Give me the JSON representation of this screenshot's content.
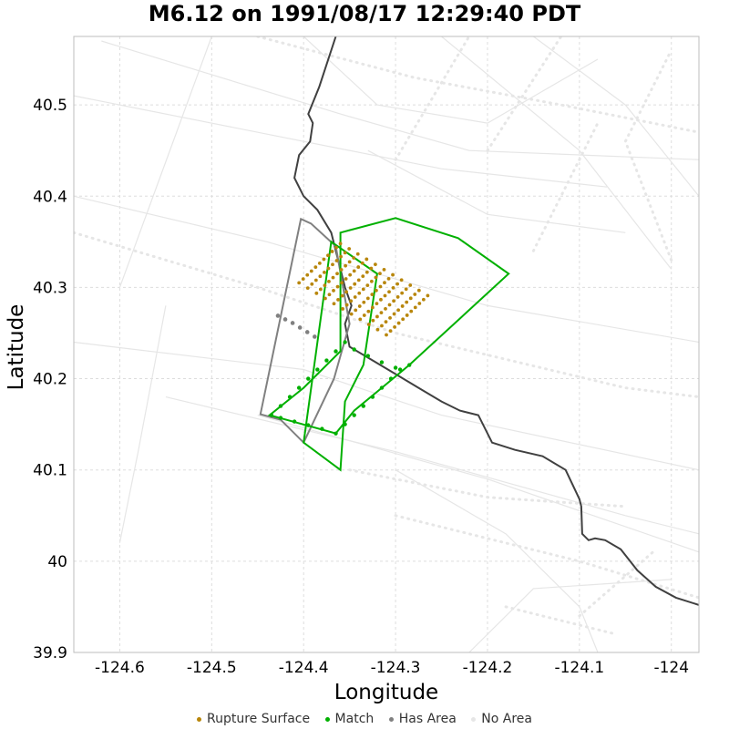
{
  "title": "M6.12 on 1991/08/17 12:29:40 PDT",
  "xlabel": "Longitude",
  "ylabel": "Latitude",
  "x_ticks": [
    "-124.6",
    "-124.5",
    "-124.4",
    "-124.3",
    "-124.2",
    "-124.1",
    "-124"
  ],
  "y_ticks": [
    "40.5",
    "40.4",
    "40.3",
    "40.2",
    "40.1",
    "40",
    "39.9"
  ],
  "legend": [
    {
      "label": "Rupture Surface",
      "color": "#b8860b"
    },
    {
      "label": "Match",
      "color": "#00b000"
    },
    {
      "label": "Has Area",
      "color": "#808080"
    },
    {
      "label": "No Area",
      "color": "#e6e6e6"
    }
  ],
  "chart_data": {
    "type": "scatter",
    "title": "M6.12 on 1991/08/17 12:29:40 PDT",
    "xlabel": "Longitude",
    "ylabel": "Latitude",
    "xlim": [
      -124.65,
      -123.97
    ],
    "ylim": [
      39.9,
      40.575
    ],
    "grid": true,
    "legend_position": "bottom",
    "colors": {
      "rupture": "#b8860b",
      "match": "#00b000",
      "has_area": "#808080",
      "no_area": "#e6e6e6",
      "coast": "#404040"
    },
    "coastline": [
      [
        -124.365,
        40.575
      ],
      [
        -124.383,
        40.52
      ],
      [
        -124.395,
        40.49
      ],
      [
        -124.39,
        40.48
      ],
      [
        -124.393,
        40.46
      ],
      [
        -124.405,
        40.445
      ],
      [
        -124.41,
        40.42
      ],
      [
        -124.4,
        40.4
      ],
      [
        -124.385,
        40.385
      ],
      [
        -124.37,
        40.36
      ],
      [
        -124.365,
        40.34
      ],
      [
        -124.36,
        40.32
      ],
      [
        -124.355,
        40.3
      ],
      [
        -124.348,
        40.28
      ],
      [
        -124.355,
        40.26
      ],
      [
        -124.35,
        40.235
      ],
      [
        -124.325,
        40.22
      ],
      [
        -124.3,
        40.205
      ],
      [
        -124.275,
        40.19
      ],
      [
        -124.25,
        40.175
      ],
      [
        -124.23,
        40.165
      ],
      [
        -124.21,
        40.16
      ],
      [
        -124.195,
        40.13
      ],
      [
        -124.17,
        40.122
      ],
      [
        -124.14,
        40.115
      ],
      [
        -124.115,
        40.1
      ],
      [
        -124.1,
        40.068
      ],
      [
        -124.098,
        40.06
      ],
      [
        -124.097,
        40.03
      ],
      [
        -124.09,
        40.023
      ],
      [
        -124.083,
        40.025
      ],
      [
        -124.072,
        40.023
      ],
      [
        -124.055,
        40.013
      ],
      [
        -124.037,
        39.99
      ],
      [
        -124.017,
        39.972
      ],
      [
        -123.995,
        39.96
      ],
      [
        -123.97,
        39.952
      ]
    ],
    "series": [
      {
        "name": "Has Area",
        "polygon": [
          [
            -124.403,
            40.375
          ],
          [
            -124.392,
            40.37
          ],
          [
            -124.365,
            40.345
          ],
          [
            -124.35,
            40.26
          ],
          [
            -124.36,
            40.225
          ],
          [
            -124.367,
            40.2
          ],
          [
            -124.4,
            40.13
          ],
          [
            -124.425,
            40.155
          ],
          [
            -124.447,
            40.161
          ],
          [
            -124.403,
            40.375
          ]
        ],
        "points": [
          [
            -124.428,
            40.269
          ],
          [
            -124.42,
            40.265
          ],
          [
            -124.412,
            40.261
          ],
          [
            -124.404,
            40.256
          ],
          [
            -124.396,
            40.251
          ],
          [
            -124.388,
            40.246
          ]
        ]
      },
      {
        "name": "Match",
        "polygons": [
          [
            [
              -124.36,
              40.36
            ],
            [
              -124.3,
              40.376
            ],
            [
              -124.232,
              40.354
            ],
            [
              -124.177,
              40.315
            ],
            [
              -124.285,
              40.215
            ],
            [
              -124.315,
              40.19
            ],
            [
              -124.345,
              40.165
            ],
            [
              -124.365,
              40.14
            ],
            [
              -124.437,
              40.16
            ],
            [
              -124.4,
              40.19
            ],
            [
              -124.36,
              40.23
            ],
            [
              -124.36,
              40.36
            ]
          ],
          [
            [
              -124.37,
              40.35
            ],
            [
              -124.32,
              40.315
            ],
            [
              -124.335,
              40.215
            ],
            [
              -124.34,
              40.205
            ],
            [
              -124.355,
              40.175
            ],
            [
              -124.36,
              40.1
            ],
            [
              -124.4,
              40.13
            ],
            [
              -124.37,
              40.35
            ]
          ]
        ],
        "points": [
          [
            -124.435,
            40.16
          ],
          [
            -124.425,
            40.17
          ],
          [
            -124.415,
            40.18
          ],
          [
            -124.405,
            40.19
          ],
          [
            -124.395,
            40.2
          ],
          [
            -124.385,
            40.21
          ],
          [
            -124.375,
            40.22
          ],
          [
            -124.365,
            40.23
          ],
          [
            -124.355,
            40.24
          ],
          [
            -124.425,
            40.157
          ],
          [
            -124.41,
            40.153
          ],
          [
            -124.395,
            40.149
          ],
          [
            -124.38,
            40.145
          ],
          [
            -124.365,
            40.14
          ],
          [
            -124.355,
            40.15
          ],
          [
            -124.345,
            40.16
          ],
          [
            -124.335,
            40.17
          ],
          [
            -124.325,
            40.18
          ],
          [
            -124.315,
            40.19
          ],
          [
            -124.305,
            40.2
          ],
          [
            -124.295,
            40.21
          ],
          [
            -124.285,
            40.215
          ],
          [
            -124.345,
            40.232
          ],
          [
            -124.33,
            40.225
          ],
          [
            -124.315,
            40.218
          ],
          [
            -124.3,
            40.212
          ]
        ]
      },
      {
        "name": "Rupture Surface",
        "grid_corners": {
          "top": [
            -124.36,
            40.348
          ],
          "left": [
            -124.405,
            40.305
          ],
          "right": [
            -124.265,
            40.288
          ],
          "bottom": [
            -124.31,
            40.248
          ]
        },
        "rows": 11,
        "cols": 11
      },
      {
        "name": "No Area",
        "lines": [
          [
            [
              -124.65,
              40.51
            ],
            [
              -124.25,
              40.43
            ],
            [
              -124.07,
              40.41
            ]
          ],
          [
            [
              -124.65,
              40.4
            ],
            [
              -124.44,
              40.35
            ],
            [
              -124.2,
              40.28
            ],
            [
              -123.97,
              40.24
            ]
          ],
          [
            [
              -124.62,
              40.57
            ],
            [
              -124.36,
              40.49
            ],
            [
              -124.22,
              40.45
            ],
            [
              -123.97,
              40.44
            ]
          ],
          [
            [
              -124.65,
              40.24
            ],
            [
              -124.4,
              40.21
            ],
            [
              -124.25,
              40.16
            ],
            [
              -123.97,
              40.1
            ]
          ],
          [
            [
              -124.55,
              40.18
            ],
            [
              -124.3,
              40.12
            ],
            [
              -124.05,
              40.05
            ],
            [
              -123.97,
              40.03
            ]
          ],
          [
            [
              -124.45,
              40.16
            ],
            [
              -124.2,
              40.09
            ],
            [
              -123.97,
              40.01
            ]
          ],
          [
            [
              -124.25,
              40.575
            ],
            [
              -124.1,
              40.45
            ],
            [
              -124.0,
              40.32
            ]
          ],
          [
            [
              -124.15,
              40.575
            ],
            [
              -124.05,
              40.5
            ],
            [
              -123.97,
              40.4
            ]
          ],
          [
            [
              -124.4,
              40.575
            ],
            [
              -124.32,
              40.5
            ],
            [
              -124.2,
              40.48
            ],
            [
              -124.08,
              40.55
            ]
          ],
          [
            [
              -124.3,
              40.1
            ],
            [
              -124.18,
              40.03
            ],
            [
              -124.1,
              39.95
            ],
            [
              -124.08,
              39.9
            ]
          ],
          [
            [
              -124.22,
              39.9
            ],
            [
              -124.15,
              39.97
            ],
            [
              -124.0,
              39.98
            ]
          ],
          [
            [
              -124.6,
              40.3
            ],
            [
              -124.52,
              40.52
            ],
            [
              -124.5,
              40.575
            ]
          ],
          [
            [
              -124.55,
              40.28
            ],
            [
              -124.58,
              40.12
            ],
            [
              -124.6,
              40.02
            ]
          ],
          [
            [
              -124.33,
              40.45
            ],
            [
              -124.2,
              40.38
            ],
            [
              -124.05,
              40.36
            ]
          ]
        ],
        "dotted_lines": [
          [
            [
              -124.65,
              40.36
            ],
            [
              -124.45,
              40.3
            ],
            [
              -124.3,
              40.25
            ],
            [
              -124.05,
              40.19
            ],
            [
              -123.97,
              40.18
            ]
          ],
          [
            [
              -124.45,
              40.575
            ],
            [
              -124.28,
              40.53
            ],
            [
              -124.12,
              40.5
            ],
            [
              -123.97,
              40.47
            ]
          ],
          [
            [
              -124.3,
              40.44
            ],
            [
              -124.22,
              40.575
            ]
          ],
          [
            [
              -124.2,
              40.45
            ],
            [
              -124.12,
              40.575
            ]
          ],
          [
            [
              -124.15,
              40.34
            ],
            [
              -124.08,
              40.48
            ]
          ],
          [
            [
              -124.0,
              40.33
            ],
            [
              -124.05,
              40.46
            ],
            [
              -124.0,
              40.56
            ]
          ],
          [
            [
              -124.3,
              40.05
            ],
            [
              -124.1,
              40.0
            ],
            [
              -123.97,
              39.96
            ]
          ],
          [
            [
              -124.18,
              39.95
            ],
            [
              -124.06,
              39.92
            ]
          ],
          [
            [
              -124.1,
              39.94
            ],
            [
              -124.02,
              40.01
            ]
          ],
          [
            [
              -124.35,
              40.1
            ],
            [
              -124.2,
              40.07
            ],
            [
              -124.05,
              40.06
            ]
          ]
        ]
      }
    ]
  }
}
